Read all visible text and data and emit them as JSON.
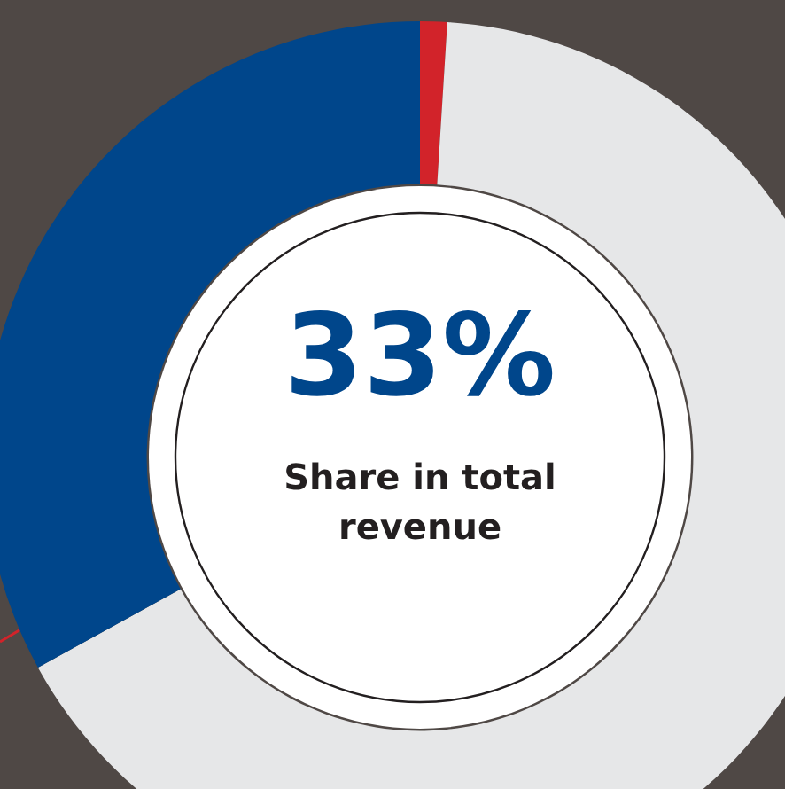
{
  "chart_data": {
    "type": "donut",
    "title": "Share in total revenue",
    "categories": [
      null,
      null,
      null
    ],
    "values": [
      1,
      66,
      33
    ],
    "colors": [
      "#d2232a",
      "#e6e7e8",
      "#00468b"
    ],
    "value_labels": [
      null,
      null,
      "33%"
    ],
    "legend": false
  }
}
